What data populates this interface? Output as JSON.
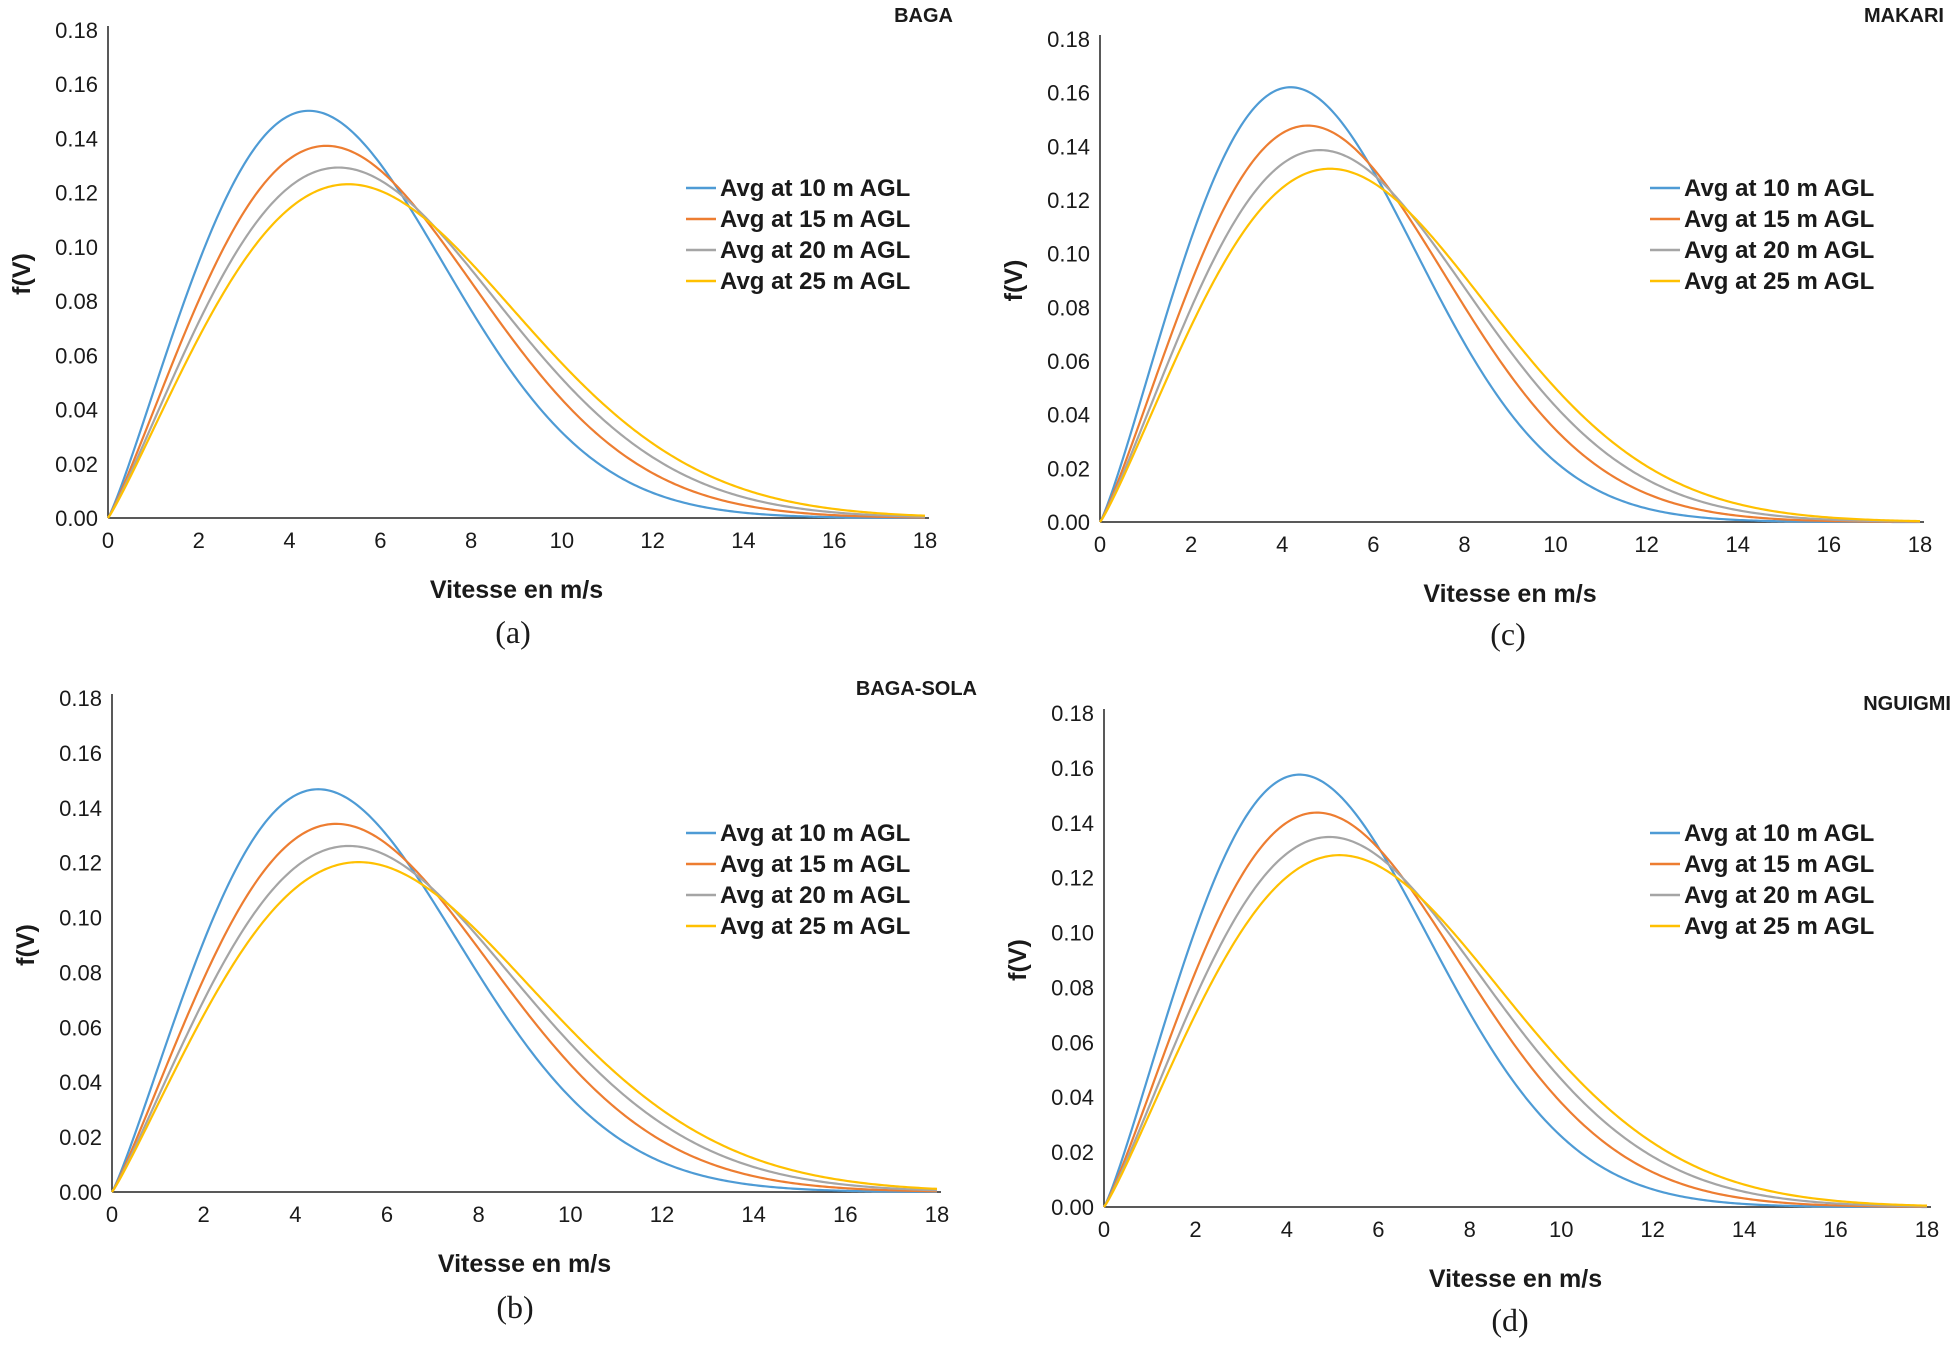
{
  "chart_data": [
    {
      "id": "a",
      "type": "line",
      "title": "BAGA",
      "caption": "(a)",
      "xlabel": "Vitesse en m/s",
      "ylabel": "f(V)",
      "xlim": [
        0,
        18
      ],
      "ylim": [
        0,
        0.18
      ],
      "x_ticks": [
        "0",
        "2",
        "4",
        "6",
        "8",
        "10",
        "12",
        "14",
        "16",
        "18"
      ],
      "y_ticks": [
        "0.00",
        "0.02",
        "0.04",
        "0.06",
        "0.08",
        "0.10",
        "0.12",
        "0.14",
        "0.16",
        "0.18"
      ],
      "legend_position": "right",
      "series": [
        {
          "name": "Avg at 10 m AGL",
          "color": "#4E9BD5",
          "k": 2.13,
          "c": 5.96
        },
        {
          "name": "Avg at 15 m AGL",
          "color": "#ED7D31",
          "k": 2.12,
          "c": 6.5
        },
        {
          "name": "Avg at 20 m AGL",
          "color": "#A5A5A5",
          "k": 2.11,
          "c": 6.88
        },
        {
          "name": "Avg at 25 m AGL",
          "color": "#FFC000",
          "k": 2.1,
          "c": 7.2
        }
      ]
    },
    {
      "id": "b",
      "type": "line",
      "title": "BAGA-SOLA",
      "caption": "(b)",
      "xlabel": "Vitesse en m/s",
      "ylabel": "f(V)",
      "xlim": [
        0,
        18
      ],
      "ylim": [
        0,
        0.18
      ],
      "x_ticks": [
        "0",
        "2",
        "4",
        "6",
        "8",
        "10",
        "12",
        "14",
        "16",
        "18"
      ],
      "y_ticks": [
        "0.00",
        "0.02",
        "0.04",
        "0.06",
        "0.08",
        "0.10",
        "0.12",
        "0.14",
        "0.16",
        "0.18"
      ],
      "legend_position": "right",
      "series": [
        {
          "name": "Avg at 10 m AGL",
          "color": "#4E9BD5",
          "k": 2.12,
          "c": 6.08
        },
        {
          "name": "Avg at 15 m AGL",
          "color": "#ED7D31",
          "k": 2.11,
          "c": 6.63
        },
        {
          "name": "Avg at 20 m AGL",
          "color": "#A5A5A5",
          "k": 2.1,
          "c": 7.03
        },
        {
          "name": "Avg at 25  m AGL",
          "color": "#FFC000",
          "k": 2.09,
          "c": 7.35
        }
      ]
    },
    {
      "id": "c",
      "type": "line",
      "title": "MAKARI",
      "caption": "(c)",
      "xlabel": "Vitesse en m/s",
      "ylabel": "f(V)",
      "xlim": [
        0,
        18
      ],
      "ylim": [
        0,
        0.18
      ],
      "x_ticks": [
        "0",
        "2",
        "4",
        "6",
        "8",
        "10",
        "12",
        "14",
        "16",
        "18"
      ],
      "y_ticks": [
        "0.00",
        "0.02",
        "0.04",
        "0.06",
        "0.08",
        "0.10",
        "0.12",
        "0.14",
        "0.16",
        "0.18"
      ],
      "legend_position": "right",
      "series": [
        {
          "name": "Avg at 10 m AGL",
          "color": "#4E9BD5",
          "k": 2.16,
          "c": 5.58
        },
        {
          "name": "Avg at 15 m AGL",
          "color": "#ED7D31",
          "k": 2.15,
          "c": 6.1
        },
        {
          "name": "Avg at 20 m AGL",
          "color": "#A5A5A5",
          "k": 2.14,
          "c": 6.48
        },
        {
          "name": "Avg at 25 m AGL",
          "color": "#FFC000",
          "k": 2.13,
          "c": 6.8
        }
      ]
    },
    {
      "id": "d",
      "type": "line",
      "title": "NGUIGMI",
      "caption": "(d)",
      "xlabel": "Vitesse en m/s",
      "ylabel": "f(V)",
      "xlim": [
        0,
        18
      ],
      "ylim": [
        0,
        0.18
      ],
      "x_ticks": [
        "0",
        "2",
        "4",
        "6",
        "8",
        "10",
        "12",
        "14",
        "16",
        "18"
      ],
      "y_ticks": [
        "0.00",
        "0.02",
        "0.04",
        "0.06",
        "0.08",
        "0.10",
        "0.12",
        "0.14",
        "0.16",
        "0.18"
      ],
      "legend_position": "right",
      "series": [
        {
          "name": "Avg at 10  m AGL",
          "color": "#4E9BD5",
          "k": 2.15,
          "c": 5.72
        },
        {
          "name": "Avg at 15 m AGL",
          "color": "#ED7D31",
          "k": 2.14,
          "c": 6.25
        },
        {
          "name": "Avg at 20  m AGL",
          "color": "#A5A5A5",
          "k": 2.13,
          "c": 6.64
        },
        {
          "name": "Avg at 25 m AGL",
          "color": "#FFC000",
          "k": 2.12,
          "c": 6.96
        }
      ]
    }
  ]
}
